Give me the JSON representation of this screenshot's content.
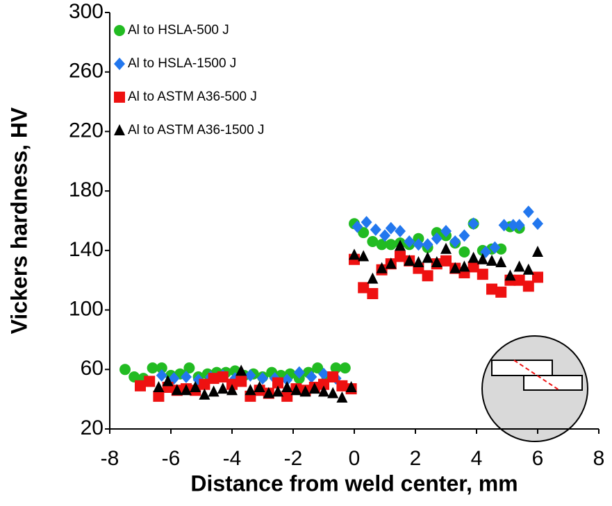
{
  "chart_data": {
    "type": "scatter",
    "xlabel": "Distance from weld center, mm",
    "ylabel": "Vickers hardness, HV",
    "xlim": [
      -8,
      8
    ],
    "xticks": [
      -8,
      -6,
      -4,
      -2,
      0,
      2,
      4,
      6,
      8
    ],
    "ylim": [
      20,
      300
    ],
    "yticks": [
      20,
      60,
      100,
      140,
      180,
      220,
      260,
      300
    ],
    "grid": false,
    "legend": "upper left",
    "series": [
      {
        "name": "Al to HSLA-500 J",
        "color": "#22bb22",
        "marker": "circle",
        "x": [
          -7.5,
          -7.2,
          -6.9,
          -6.6,
          -6.3,
          -6.0,
          -5.7,
          -5.4,
          -5.1,
          -4.8,
          -4.5,
          -4.2,
          -3.9,
          -3.6,
          -3.3,
          -3.0,
          -2.7,
          -2.4,
          -2.1,
          -1.8,
          -1.5,
          -1.2,
          -0.9,
          -0.6,
          -0.3,
          0,
          0.3,
          0.6,
          0.9,
          1.2,
          1.5,
          1.8,
          2.1,
          2.4,
          2.7,
          3.0,
          3.3,
          3.6,
          3.9,
          4.2,
          4.5,
          4.8,
          5.1,
          5.4
        ],
        "values": [
          60,
          55,
          54,
          61,
          61,
          56,
          57,
          61,
          55,
          57,
          58,
          58,
          59,
          56,
          57,
          55,
          58,
          56,
          57,
          54,
          58,
          61,
          55,
          61,
          61,
          158,
          152,
          146,
          144,
          144,
          145,
          144,
          148,
          142,
          152,
          150,
          145,
          139,
          158,
          140,
          141,
          141,
          156,
          155
        ]
      },
      {
        "name": "Al to HSLA-1500 J",
        "color": "#2277ee",
        "marker": "diamond",
        "x": [
          -6.3,
          -5.9,
          -5.5,
          -5.1,
          -4.7,
          -4.3,
          -3.9,
          -3.4,
          -3.0,
          -2.6,
          -2.2,
          -1.8,
          -1.4,
          -1.0,
          -0.6,
          0.1,
          0.4,
          0.7,
          1.0,
          1.2,
          1.5,
          1.8,
          2.1,
          2.4,
          2.7,
          3.0,
          3.3,
          3.6,
          3.9,
          4.3,
          4.6,
          4.9,
          5.2,
          5.4,
          5.7,
          6.0
        ],
        "values": [
          56,
          54,
          55,
          53,
          55,
          56,
          54,
          56,
          54,
          54,
          53,
          58,
          55,
          57,
          54,
          156,
          159,
          154,
          150,
          155,
          153,
          146,
          144,
          144,
          148,
          153,
          146,
          150,
          158,
          139,
          142,
          157,
          157,
          157,
          166,
          158
        ]
      },
      {
        "name": "Al to ASTM A36-500 J",
        "color": "#ee1111",
        "marker": "square",
        "x": [
          -7.0,
          -6.7,
          -6.4,
          -6.1,
          -5.8,
          -5.5,
          -5.2,
          -4.9,
          -4.6,
          -4.3,
          -4.0,
          -3.7,
          -3.4,
          -3.1,
          -2.8,
          -2.5,
          -2.2,
          -1.9,
          -1.6,
          -1.3,
          -1.0,
          -0.7,
          -0.4,
          -0.1,
          0,
          0.3,
          0.6,
          0.9,
          1.2,
          1.5,
          1.8,
          2.1,
          2.4,
          2.7,
          3.0,
          3.3,
          3.6,
          3.9,
          4.2,
          4.5,
          4.8,
          5.1,
          5.4,
          5.7,
          6.0
        ],
        "values": [
          49,
          52,
          42,
          48,
          46,
          47,
          46,
          50,
          54,
          55,
          50,
          52,
          42,
          46,
          44,
          51,
          42,
          47,
          46,
          48,
          50,
          55,
          49,
          47,
          134,
          115,
          111,
          127,
          131,
          136,
          133,
          128,
          123,
          131,
          133,
          128,
          125,
          129,
          124,
          114,
          112,
          120,
          120,
          116,
          122
        ]
      },
      {
        "name": "Al to ASTM A36-1500 J",
        "color": "#000000",
        "marker": "triangle",
        "x": [
          -6.4,
          -6.1,
          -5.8,
          -5.5,
          -5.2,
          -4.9,
          -4.6,
          -4.3,
          -4.0,
          -3.7,
          -3.4,
          -3.1,
          -2.8,
          -2.5,
          -2.2,
          -1.9,
          -1.6,
          -1.3,
          -1.0,
          -0.7,
          -0.4,
          -0.1,
          0,
          0.3,
          0.6,
          0.9,
          1.2,
          1.5,
          1.8,
          2.1,
          2.4,
          2.7,
          3.0,
          3.3,
          3.6,
          3.9,
          4.2,
          4.5,
          4.8,
          5.1,
          5.4,
          5.7,
          6.0
        ],
        "values": [
          48,
          52,
          46,
          46,
          48,
          43,
          45,
          47,
          46,
          59,
          46,
          48,
          44,
          45,
          48,
          46,
          45,
          47,
          45,
          44,
          41,
          48,
          137,
          136,
          121,
          128,
          131,
          143,
          133,
          132,
          135,
          132,
          141,
          128,
          129,
          135,
          134,
          133,
          132,
          123,
          129,
          127,
          139
        ]
      }
    ]
  }
}
